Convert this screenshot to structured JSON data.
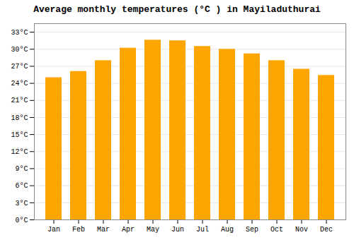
{
  "chart_data": {
    "type": "bar",
    "title": "Average monthly temperatures (°C ) in Mayiladuthurai",
    "categories": [
      "Jan",
      "Feb",
      "Mar",
      "Apr",
      "May",
      "Jun",
      "Jul",
      "Aug",
      "Sep",
      "Oct",
      "Nov",
      "Dec"
    ],
    "values": [
      25.0,
      26.1,
      28.0,
      30.2,
      31.6,
      31.5,
      30.5,
      30.0,
      29.2,
      28.0,
      26.5,
      25.4
    ],
    "color": "#FFA500",
    "ylim": [
      0,
      34.5
    ],
    "yticks": [
      {
        "value": 0,
        "label": "0°C"
      },
      {
        "value": 3,
        "label": "3°C"
      },
      {
        "value": 6,
        "label": "6°C"
      },
      {
        "value": 9,
        "label": "9°C"
      },
      {
        "value": 12,
        "label": "12°C"
      },
      {
        "value": 15,
        "label": "15°C"
      },
      {
        "value": 18,
        "label": "18°C"
      },
      {
        "value": 21,
        "label": "21°C"
      },
      {
        "value": 24,
        "label": "24°C"
      },
      {
        "value": 27,
        "label": "27°C"
      },
      {
        "value": 30,
        "label": "30°C"
      },
      {
        "value": 33,
        "label": "33°C"
      }
    ],
    "grid": true
  }
}
